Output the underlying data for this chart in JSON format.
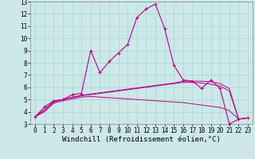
{
  "xlabel": "Windchill (Refroidissement éolien,°C)",
  "background_color": "#cce8e8",
  "line_color": "#bb0088",
  "x": [
    0,
    1,
    2,
    3,
    4,
    5,
    6,
    7,
    8,
    9,
    10,
    11,
    12,
    13,
    14,
    15,
    16,
    17,
    18,
    19,
    20,
    21,
    22,
    23
  ],
  "series": {
    "main": [
      3.6,
      4.4,
      4.9,
      5.0,
      5.4,
      5.5,
      9.0,
      7.2,
      8.1,
      8.8,
      9.5,
      11.7,
      12.4,
      12.8,
      10.8,
      7.8,
      6.6,
      6.5,
      5.9,
      6.6,
      5.9,
      3.0,
      3.4,
      3.5
    ],
    "line1": [
      3.6,
      4.2,
      4.85,
      5.0,
      5.2,
      5.35,
      5.45,
      5.55,
      5.65,
      5.75,
      5.85,
      5.95,
      6.05,
      6.15,
      6.25,
      6.35,
      6.5,
      6.5,
      6.5,
      6.45,
      6.3,
      5.9,
      3.4,
      3.5
    ],
    "line2": [
      3.6,
      4.1,
      4.8,
      5.0,
      5.15,
      5.3,
      5.4,
      5.5,
      5.6,
      5.7,
      5.8,
      5.9,
      6.0,
      6.1,
      6.2,
      6.3,
      6.4,
      6.4,
      6.35,
      6.25,
      6.1,
      5.7,
      3.4,
      3.5
    ],
    "line3": [
      3.6,
      4.0,
      4.7,
      4.9,
      5.05,
      5.2,
      5.25,
      5.2,
      5.15,
      5.1,
      5.05,
      5.0,
      4.95,
      4.9,
      4.85,
      4.8,
      4.75,
      4.65,
      4.55,
      4.45,
      4.35,
      4.1,
      3.4,
      3.5
    ]
  },
  "ylim": [
    3,
    13
  ],
  "xlim": [
    -0.5,
    23.5
  ],
  "yticks": [
    3,
    4,
    5,
    6,
    7,
    8,
    9,
    10,
    11,
    12,
    13
  ],
  "xticks": [
    0,
    1,
    2,
    3,
    4,
    5,
    6,
    7,
    8,
    9,
    10,
    11,
    12,
    13,
    14,
    15,
    16,
    17,
    18,
    19,
    20,
    21,
    22,
    23
  ],
  "grid_color": "#aad4d4",
  "tick_fontsize": 5.5,
  "xlabel_fontsize": 6.5
}
